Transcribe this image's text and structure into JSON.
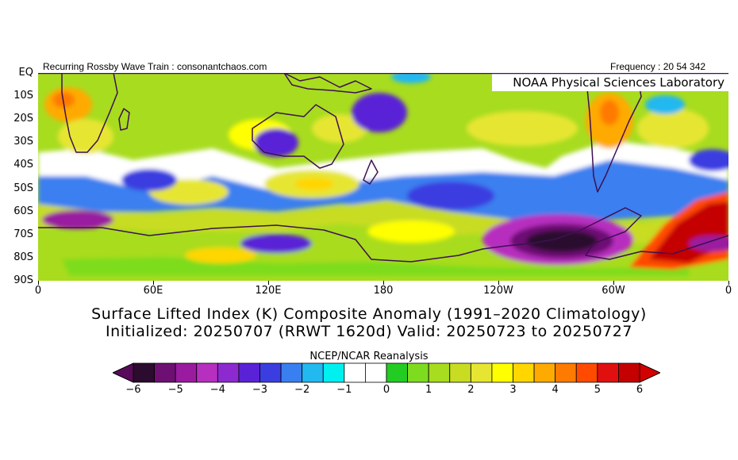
{
  "header": {
    "left_note": "Recurring Rossby Wave Train : consonantchaos.com",
    "right_note": "Frequency : 20 54 342",
    "lab_name": "NOAA Physical Sciences Laboratory"
  },
  "map": {
    "lat_labels": [
      "EQ",
      "10S",
      "20S",
      "30S",
      "40S",
      "50S",
      "60S",
      "70S",
      "80S",
      "90S"
    ],
    "lon_labels": [
      "0",
      "60E",
      "120E",
      "180",
      "120W",
      "60W",
      "0"
    ],
    "projection": "cylindrical equidistant, 0 to 360 longitude, EQ to 90S"
  },
  "titles": {
    "line1": "Surface Lifted Index (K) Composite Anomaly (1991–2020 Climatology)",
    "line2": "Initialized: 20250707 (RRWT 1620d) Valid: 20250723 to 20250727"
  },
  "colorbar": {
    "source_label": "NCEP/NCAR Reanalysis",
    "tick_labels": [
      "−6",
      "−5",
      "−4",
      "−3",
      "−2",
      "−1",
      "0",
      "1",
      "2",
      "3",
      "4",
      "5",
      "6"
    ],
    "colors": [
      "#2b0b2e",
      "#6e0f74",
      "#9a1aa0",
      "#b72fbf",
      "#8c2ad0",
      "#5a22d6",
      "#3a3ee0",
      "#3a7ff0",
      "#22b8f0",
      "#00f0f0",
      "#ffffff",
      "#ffffff",
      "#22cc22",
      "#7ddc1f",
      "#a8dc1f",
      "#c8dc22",
      "#e6e632",
      "#ffff00",
      "#ffd600",
      "#ffaa00",
      "#ff7a00",
      "#ff4a00",
      "#e01010",
      "#c40000"
    ]
  }
}
